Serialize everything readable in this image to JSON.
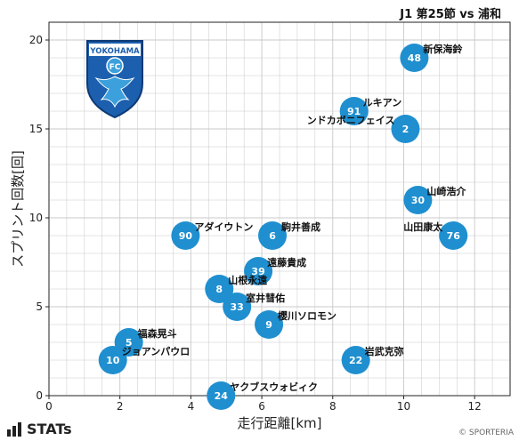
{
  "header": {
    "title": "J1 第25節 vs 浦和"
  },
  "footer": {
    "brand": "STATs",
    "credit": "© SPORTERIA"
  },
  "colors": {
    "point": "#1f8fd0",
    "grid": "#c8c8c8",
    "crest_blue": "#1c5fae",
    "crest_light": "#3ca0dc"
  },
  "logo": {
    "club_text": "YOKOHAMA",
    "badge_text": "FC"
  },
  "chart_data": {
    "type": "scatter",
    "xlabel": "走行距離[km]",
    "ylabel": "スプリント回数[回]",
    "xlim": [
      0,
      13
    ],
    "ylim": [
      0,
      21
    ],
    "xticks": [
      0,
      2,
      4,
      6,
      8,
      10,
      12
    ],
    "yticks": [
      0,
      5,
      10,
      15,
      20
    ],
    "grid": true,
    "points": [
      {
        "number": "48",
        "name": "新保海鈴",
        "x": 10.3,
        "y": 19,
        "label_side": "right"
      },
      {
        "number": "91",
        "name": "ルキアン",
        "x": 8.6,
        "y": 16,
        "label_side": "right"
      },
      {
        "number": "2",
        "name": "ンドカボニフェイス",
        "x": 10.05,
        "y": 15,
        "label_side": "left"
      },
      {
        "number": "30",
        "name": "山崎浩介",
        "x": 10.4,
        "y": 11,
        "label_side": "right"
      },
      {
        "number": "90",
        "name": "アダイウトン",
        "x": 3.85,
        "y": 9,
        "label_side": "right"
      },
      {
        "number": "6",
        "name": "駒井善成",
        "x": 6.3,
        "y": 9,
        "label_side": "right"
      },
      {
        "number": "76",
        "name": "山田康太",
        "x": 11.4,
        "y": 9,
        "label_side": "left"
      },
      {
        "number": "39",
        "name": "遠藤貴成",
        "x": 5.9,
        "y": 7,
        "label_side": "right"
      },
      {
        "number": "8",
        "name": "山根永遠",
        "x": 4.8,
        "y": 6,
        "label_side": "right"
      },
      {
        "number": "33",
        "name": "室井彗佑",
        "x": 5.3,
        "y": 5,
        "label_side": "right"
      },
      {
        "number": "9",
        "name": "櫻川ソロモン",
        "x": 6.2,
        "y": 4,
        "label_side": "right"
      },
      {
        "number": "5",
        "name": "福森晃斗",
        "x": 2.25,
        "y": 3,
        "label_side": "right"
      },
      {
        "number": "10",
        "name": "ジョアンパウロ",
        "x": 1.8,
        "y": 2,
        "label_side": "right"
      },
      {
        "number": "22",
        "name": "岩武克弥",
        "x": 8.65,
        "y": 2,
        "label_side": "right"
      },
      {
        "number": "24",
        "name": "ヤクブスウォビィク",
        "x": 4.85,
        "y": 0,
        "label_side": "right"
      }
    ]
  }
}
